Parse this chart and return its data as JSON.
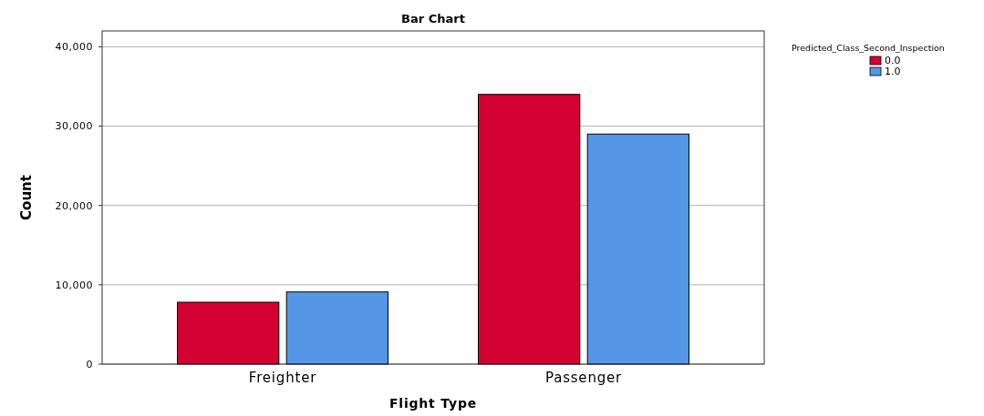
{
  "chart_data": {
    "type": "bar",
    "title": "Bar Chart",
    "xlabel": "Flight Type",
    "ylabel": "Count",
    "legend_title": "Predicted_Class_Second_Inspection",
    "categories": [
      "Freighter",
      "Passenger"
    ],
    "series": [
      {
        "name": "0.0",
        "color": "#d50032",
        "values": [
          7800,
          34000
        ]
      },
      {
        "name": "1.0",
        "color": "#5596e6",
        "values": [
          9100,
          29000
        ]
      }
    ],
    "ylim": [
      0,
      42000
    ],
    "yticks": [
      0,
      {
        "value": 10000,
        "label": "10,000"
      },
      {
        "value": 20000,
        "label": "20,000"
      },
      {
        "value": 30000,
        "label": "30,000"
      },
      {
        "value": 40000,
        "label": "40,000"
      }
    ],
    "grid": "y",
    "legend": "top right"
  }
}
